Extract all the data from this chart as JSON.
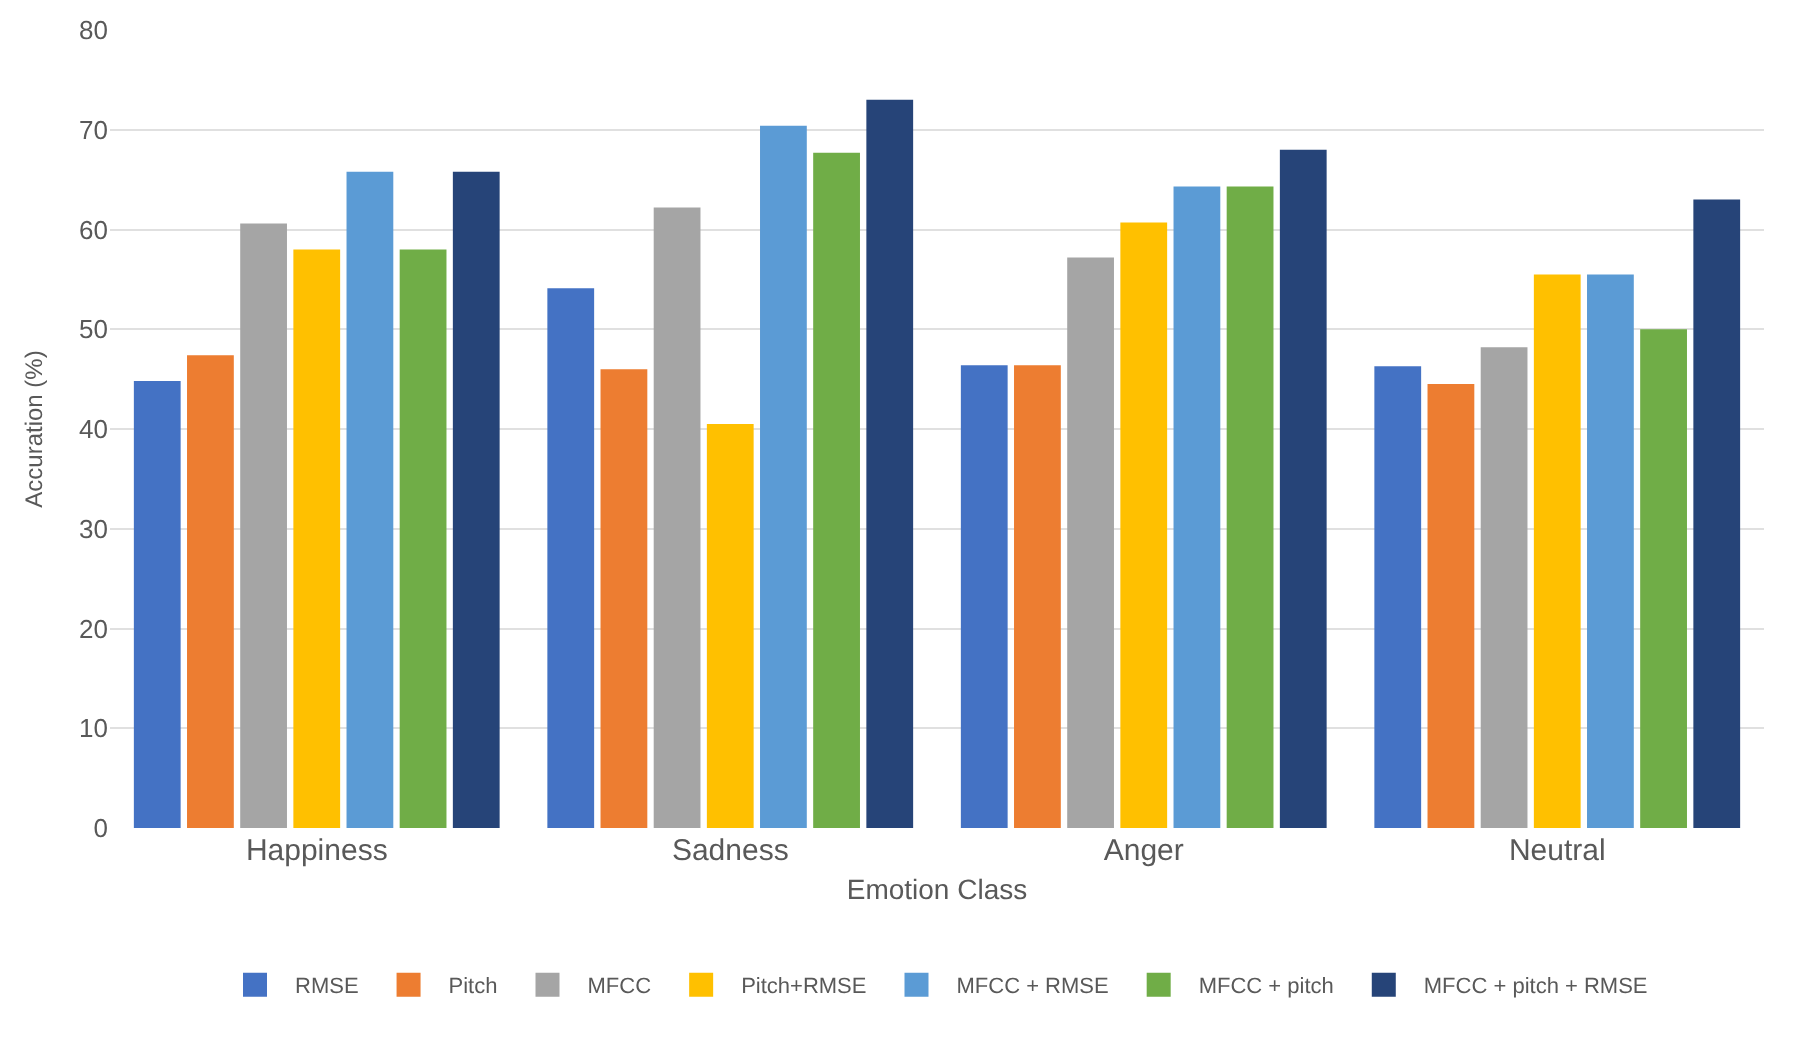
{
  "chart_data": {
    "type": "bar",
    "xlabel": "Emotion Class",
    "ylabel": "Accuration (%)",
    "categories": [
      "Happiness",
      "Sadness",
      "Anger",
      "Neutral"
    ],
    "series": [
      {
        "name": "RMSE",
        "color": "#4472c4",
        "values": [
          44.8,
          54.1,
          46.4,
          46.3
        ]
      },
      {
        "name": "Pitch",
        "color": "#ed7d31",
        "values": [
          47.4,
          46,
          46.4,
          44.5
        ]
      },
      {
        "name": "MFCC",
        "color": "#a5a5a5",
        "values": [
          60.6,
          62.2,
          57.2,
          48.2
        ]
      },
      {
        "name": "Pitch+RMSE",
        "color": "#ffc000",
        "values": [
          58,
          40.5,
          60.7,
          55.5
        ]
      },
      {
        "name": "MFCC + RMSE",
        "color": "#5b9bd5",
        "values": [
          65.8,
          70.4,
          64.3,
          55.5
        ]
      },
      {
        "name": "MFCC + pitch",
        "color": "#70ad47",
        "values": [
          58,
          67.7,
          64.3,
          50
        ]
      },
      {
        "name": "MFCC + pitch + RMSE",
        "color": "#264478",
        "values": [
          65.8,
          73,
          68,
          63
        ]
      }
    ],
    "ylim": [
      0,
      80
    ],
    "yticks": [
      0,
      10,
      20,
      30,
      40,
      50,
      60,
      70,
      80
    ],
    "grid": "y",
    "legend": "bottom"
  }
}
